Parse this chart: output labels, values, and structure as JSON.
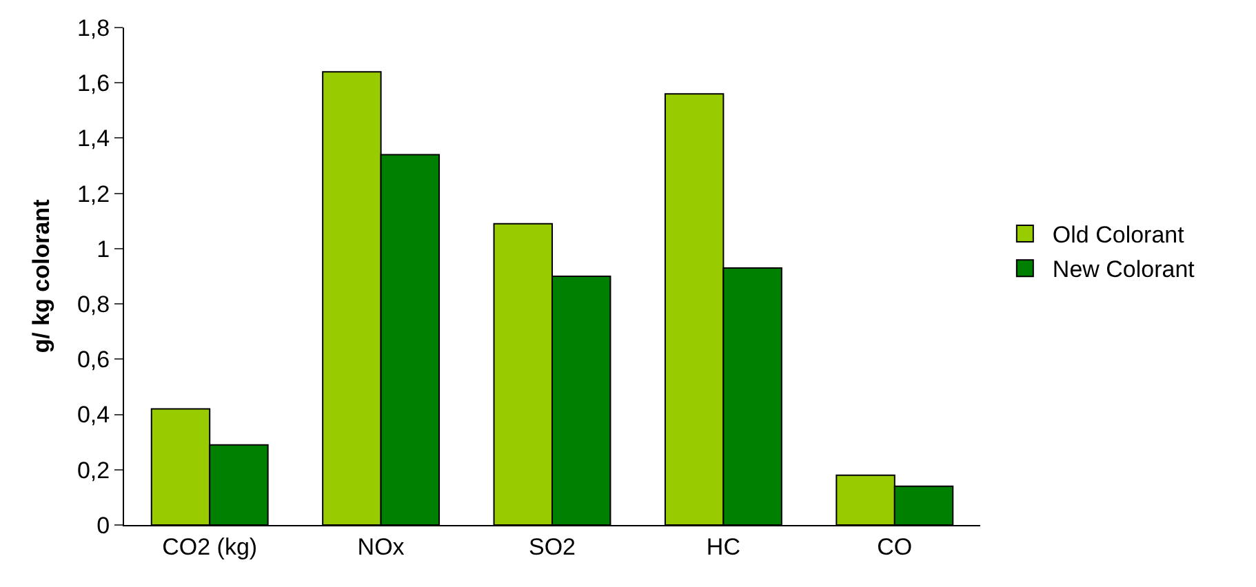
{
  "chart_data": {
    "type": "bar",
    "ylabel": "g/ kg colorant",
    "categories": [
      "CO2 (kg)",
      "NOx",
      "SO2",
      "HC",
      "CO"
    ],
    "series": [
      {
        "name": "Old Colorant",
        "color": "#99cc00",
        "values": [
          0.42,
          1.64,
          1.09,
          1.56,
          0.18
        ]
      },
      {
        "name": "New Colorant",
        "color": "#008000",
        "values": [
          0.29,
          1.34,
          0.9,
          0.93,
          0.14
        ]
      }
    ],
    "ylim": [
      0,
      1.8
    ],
    "yticks": [
      0,
      {
        "value": 0.2,
        "label": "0,2"
      },
      {
        "value": 0.4,
        "label": "0,4"
      },
      {
        "value": 0.6,
        "label": "0,6"
      },
      {
        "value": 0.8,
        "label": "0,8"
      },
      1,
      {
        "value": 1.2,
        "label": "1,2"
      },
      {
        "value": 1.4,
        "label": "1,4"
      },
      {
        "value": 1.6,
        "label": "1,6"
      },
      {
        "value": 1.8,
        "label": "1,8"
      }
    ],
    "legend": "right"
  }
}
